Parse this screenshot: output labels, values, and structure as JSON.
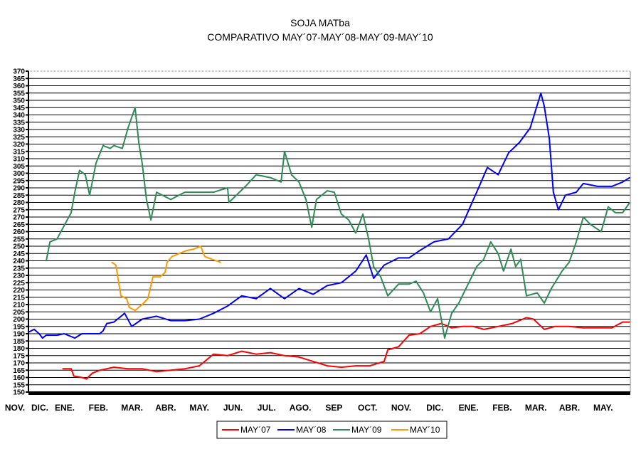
{
  "chart_data": {
    "type": "line",
    "title": "SOJA MATba",
    "subtitle": "COMPARATIVO MAY´07-MAY´08-MAY´09-MAY´10",
    "xlabel": "",
    "ylabel": "",
    "ylim": [
      150,
      370
    ],
    "ytick_step": 5,
    "xlim": [
      0.92,
      18.8
    ],
    "xticks": [
      "NOV.",
      "DIC.",
      "ENE.",
      "FEB.",
      "MAR.",
      "ABR.",
      "MAY.",
      "JUN.",
      "JUL.",
      "AGO.",
      "SEP",
      "OCT.",
      "NOV.",
      "DIC.",
      "ENE.",
      "FEB.",
      "MAR.",
      "ABR.",
      "MAY."
    ],
    "grid": true,
    "legend": "bottom",
    "series": [
      {
        "name": "MAY´07",
        "color": "#ff0000",
        "points": [
          [
            1.94,
            166
          ],
          [
            2.19,
            166
          ],
          [
            2.27,
            161
          ],
          [
            2.51,
            160
          ],
          [
            2.65,
            159
          ],
          [
            2.82,
            163
          ],
          [
            3.04,
            165
          ],
          [
            3.46,
            167
          ],
          [
            3.88,
            166
          ],
          [
            4.3,
            166
          ],
          [
            4.73,
            164
          ],
          [
            5.15,
            165
          ],
          [
            5.57,
            166
          ],
          [
            6.0,
            168
          ],
          [
            6.42,
            176
          ],
          [
            6.84,
            175
          ],
          [
            7.26,
            178
          ],
          [
            7.69,
            176
          ],
          [
            8.11,
            177
          ],
          [
            8.53,
            175
          ],
          [
            8.96,
            174
          ],
          [
            9.38,
            171
          ],
          [
            9.8,
            168
          ],
          [
            10.22,
            167
          ],
          [
            10.65,
            168
          ],
          [
            11.07,
            168
          ],
          [
            11.49,
            171
          ],
          [
            11.6,
            179
          ],
          [
            11.92,
            181
          ],
          [
            12.23,
            189
          ],
          [
            12.55,
            190
          ],
          [
            12.87,
            195
          ],
          [
            13.19,
            197
          ],
          [
            13.5,
            194
          ],
          [
            13.82,
            195
          ],
          [
            14.14,
            195
          ],
          [
            14.46,
            193
          ],
          [
            14.88,
            195
          ],
          [
            15.3,
            197
          ],
          [
            15.72,
            201
          ],
          [
            15.93,
            200
          ],
          [
            16.25,
            193
          ],
          [
            16.57,
            195
          ],
          [
            16.99,
            195
          ],
          [
            17.41,
            194
          ],
          [
            17.83,
            194
          ],
          [
            18.26,
            194
          ],
          [
            18.58,
            198
          ],
          [
            18.79,
            198
          ]
        ]
      },
      {
        "name": "MAY´08",
        "color": "#0000ff",
        "points": [
          [
            0.92,
            191
          ],
          [
            1.09,
            193
          ],
          [
            1.24,
            190
          ],
          [
            1.34,
            187
          ],
          [
            1.45,
            189
          ],
          [
            1.77,
            189
          ],
          [
            1.98,
            190
          ],
          [
            2.3,
            187
          ],
          [
            2.51,
            190
          ],
          [
            2.82,
            190
          ],
          [
            3.04,
            190
          ],
          [
            3.14,
            192
          ],
          [
            3.25,
            197
          ],
          [
            3.46,
            198
          ],
          [
            3.78,
            204
          ],
          [
            3.99,
            195
          ],
          [
            4.3,
            200
          ],
          [
            4.73,
            202
          ],
          [
            5.15,
            199
          ],
          [
            5.57,
            199
          ],
          [
            6.0,
            200
          ],
          [
            6.42,
            204
          ],
          [
            6.84,
            209
          ],
          [
            7.26,
            216
          ],
          [
            7.69,
            214
          ],
          [
            8.11,
            221
          ],
          [
            8.53,
            214
          ],
          [
            8.96,
            221
          ],
          [
            9.38,
            217
          ],
          [
            9.8,
            223
          ],
          [
            10.22,
            225
          ],
          [
            10.65,
            233
          ],
          [
            10.96,
            244
          ],
          [
            11.18,
            228
          ],
          [
            11.49,
            237
          ],
          [
            11.92,
            242
          ],
          [
            12.23,
            242
          ],
          [
            12.55,
            247
          ],
          [
            12.97,
            253
          ],
          [
            13.4,
            255
          ],
          [
            13.82,
            265
          ],
          [
            14.03,
            276
          ],
          [
            14.24,
            287
          ],
          [
            14.56,
            304
          ],
          [
            14.88,
            299
          ],
          [
            15.19,
            314
          ],
          [
            15.51,
            321
          ],
          [
            15.83,
            331
          ],
          [
            16.15,
            355
          ],
          [
            16.25,
            346
          ],
          [
            16.4,
            324
          ],
          [
            16.52,
            287
          ],
          [
            16.67,
            275
          ],
          [
            16.88,
            285
          ],
          [
            17.2,
            287
          ],
          [
            17.41,
            293
          ],
          [
            17.83,
            291
          ],
          [
            18.26,
            291
          ],
          [
            18.58,
            294
          ],
          [
            18.79,
            297
          ]
        ]
      },
      {
        "name": "MAY´09",
        "color": "#2e8b57",
        "points": [
          [
            1.45,
            240
          ],
          [
            1.56,
            253
          ],
          [
            1.77,
            255
          ],
          [
            1.98,
            264
          ],
          [
            2.19,
            273
          ],
          [
            2.3,
            287
          ],
          [
            2.44,
            302
          ],
          [
            2.61,
            299
          ],
          [
            2.74,
            285
          ],
          [
            2.93,
            307
          ],
          [
            3.14,
            319
          ],
          [
            3.35,
            317
          ],
          [
            3.46,
            319
          ],
          [
            3.71,
            317
          ],
          [
            3.88,
            331
          ],
          [
            4.09,
            345
          ],
          [
            4.2,
            321
          ],
          [
            4.3,
            307
          ],
          [
            4.43,
            282
          ],
          [
            4.56,
            268
          ],
          [
            4.73,
            287
          ],
          [
            5.15,
            282
          ],
          [
            5.57,
            287
          ],
          [
            6.0,
            287
          ],
          [
            6.42,
            287
          ],
          [
            6.84,
            290
          ],
          [
            6.88,
            280
          ],
          [
            7.37,
            291
          ],
          [
            7.69,
            299
          ],
          [
            8.11,
            297
          ],
          [
            8.43,
            294
          ],
          [
            8.53,
            315
          ],
          [
            8.74,
            299
          ],
          [
            8.96,
            294
          ],
          [
            9.17,
            282
          ],
          [
            9.34,
            263
          ],
          [
            9.48,
            282
          ],
          [
            9.8,
            288
          ],
          [
            10.01,
            287
          ],
          [
            10.22,
            272
          ],
          [
            10.44,
            268
          ],
          [
            10.65,
            259
          ],
          [
            10.86,
            272
          ],
          [
            11.03,
            255
          ],
          [
            11.18,
            236
          ],
          [
            11.39,
            229
          ],
          [
            11.6,
            216
          ],
          [
            11.92,
            224
          ],
          [
            12.23,
            224
          ],
          [
            12.44,
            226
          ],
          [
            12.66,
            218
          ],
          [
            12.87,
            205
          ],
          [
            13.08,
            214
          ],
          [
            13.29,
            187
          ],
          [
            13.5,
            204
          ],
          [
            13.71,
            211
          ],
          [
            14.03,
            226
          ],
          [
            14.24,
            236
          ],
          [
            14.45,
            241
          ],
          [
            14.66,
            253
          ],
          [
            14.88,
            245
          ],
          [
            15.04,
            233
          ],
          [
            15.26,
            248
          ],
          [
            15.4,
            236
          ],
          [
            15.55,
            241
          ],
          [
            15.72,
            216
          ],
          [
            16.04,
            218
          ],
          [
            16.25,
            211
          ],
          [
            16.46,
            221
          ],
          [
            16.78,
            233
          ],
          [
            16.99,
            239
          ],
          [
            17.2,
            253
          ],
          [
            17.41,
            270
          ],
          [
            17.62,
            265
          ],
          [
            17.94,
            260
          ],
          [
            18.15,
            277
          ],
          [
            18.36,
            273
          ],
          [
            18.58,
            273
          ],
          [
            18.79,
            280
          ]
        ]
      },
      {
        "name": "MAY´10",
        "color": "#ff9900",
        "points": [
          [
            3.4,
            239
          ],
          [
            3.52,
            237
          ],
          [
            3.61,
            224
          ],
          [
            3.67,
            216
          ],
          [
            3.84,
            214
          ],
          [
            3.92,
            208
          ],
          [
            4.09,
            206
          ],
          [
            4.3,
            210
          ],
          [
            4.47,
            214
          ],
          [
            4.62,
            229
          ],
          [
            4.83,
            229
          ],
          [
            4.98,
            232
          ],
          [
            5.04,
            239
          ],
          [
            5.19,
            243
          ],
          [
            5.4,
            245
          ],
          [
            5.62,
            247
          ],
          [
            5.83,
            248
          ],
          [
            6.04,
            250
          ],
          [
            6.16,
            243
          ],
          [
            6.38,
            241
          ],
          [
            6.63,
            239
          ]
        ]
      }
    ]
  }
}
